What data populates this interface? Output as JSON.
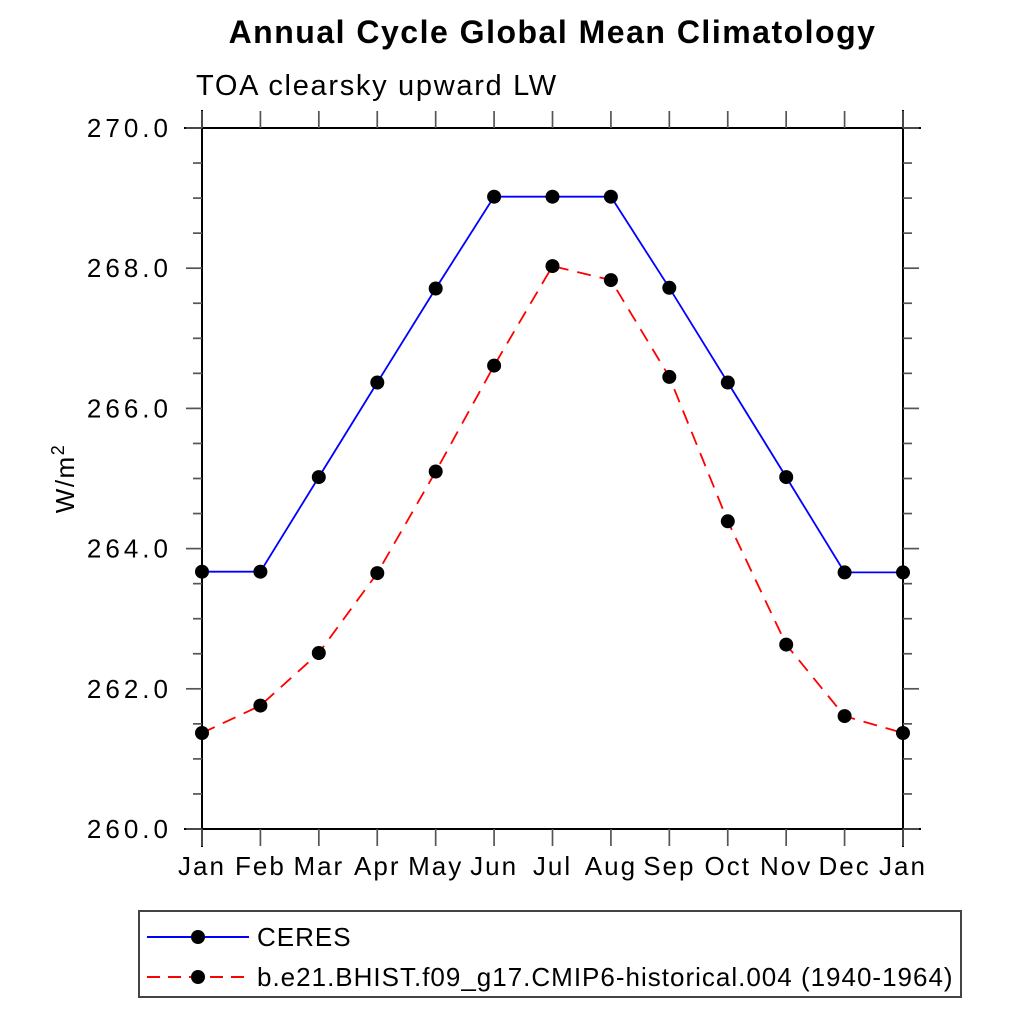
{
  "page": {
    "title": "Annual Cycle Global Mean Climatology",
    "subtitle": "TOA clearsky upward LW"
  },
  "chart_data": {
    "type": "line",
    "title": "Annual Cycle Global Mean Climatology",
    "subtitle": "TOA clearsky upward LW",
    "ylabel_base": "W/m",
    "ylabel_exponent": "2",
    "x_categories": [
      "Jan",
      "Feb",
      "Mar",
      "Apr",
      "May",
      "Jun",
      "Jul",
      "Aug",
      "Sep",
      "Oct",
      "Nov",
      "Dec",
      "Jan"
    ],
    "ylim": [
      260.0,
      270.0
    ],
    "y_major_ticks": [
      260.0,
      262.0,
      264.0,
      266.0,
      268.0,
      270.0
    ],
    "y_tick_labels": [
      "260.0",
      "262.0",
      "264.0",
      "266.0",
      "268.0",
      "270.0"
    ],
    "y_minor_step": 0.5,
    "grid": "off",
    "legend_position": "bottom-left",
    "series": [
      {
        "name": "CERES",
        "color": "#0000ff",
        "line_style": "solid",
        "marker": "filled-circle",
        "marker_color": "#000000",
        "values": [
          263.67,
          263.67,
          265.02,
          266.37,
          267.71,
          269.02,
          269.02,
          269.02,
          267.72,
          266.37,
          265.02,
          263.66,
          263.66
        ]
      },
      {
        "name": "b.e21.BHIST.f09_g17.CMIP6-historical.004 (1940-1964)",
        "color": "#ff0000",
        "line_style": "dashed",
        "marker": "filled-circle",
        "marker_color": "#000000",
        "values": [
          261.37,
          261.76,
          262.51,
          263.65,
          265.1,
          266.61,
          268.03,
          267.83,
          266.45,
          264.39,
          262.63,
          261.61,
          261.37
        ]
      }
    ]
  }
}
